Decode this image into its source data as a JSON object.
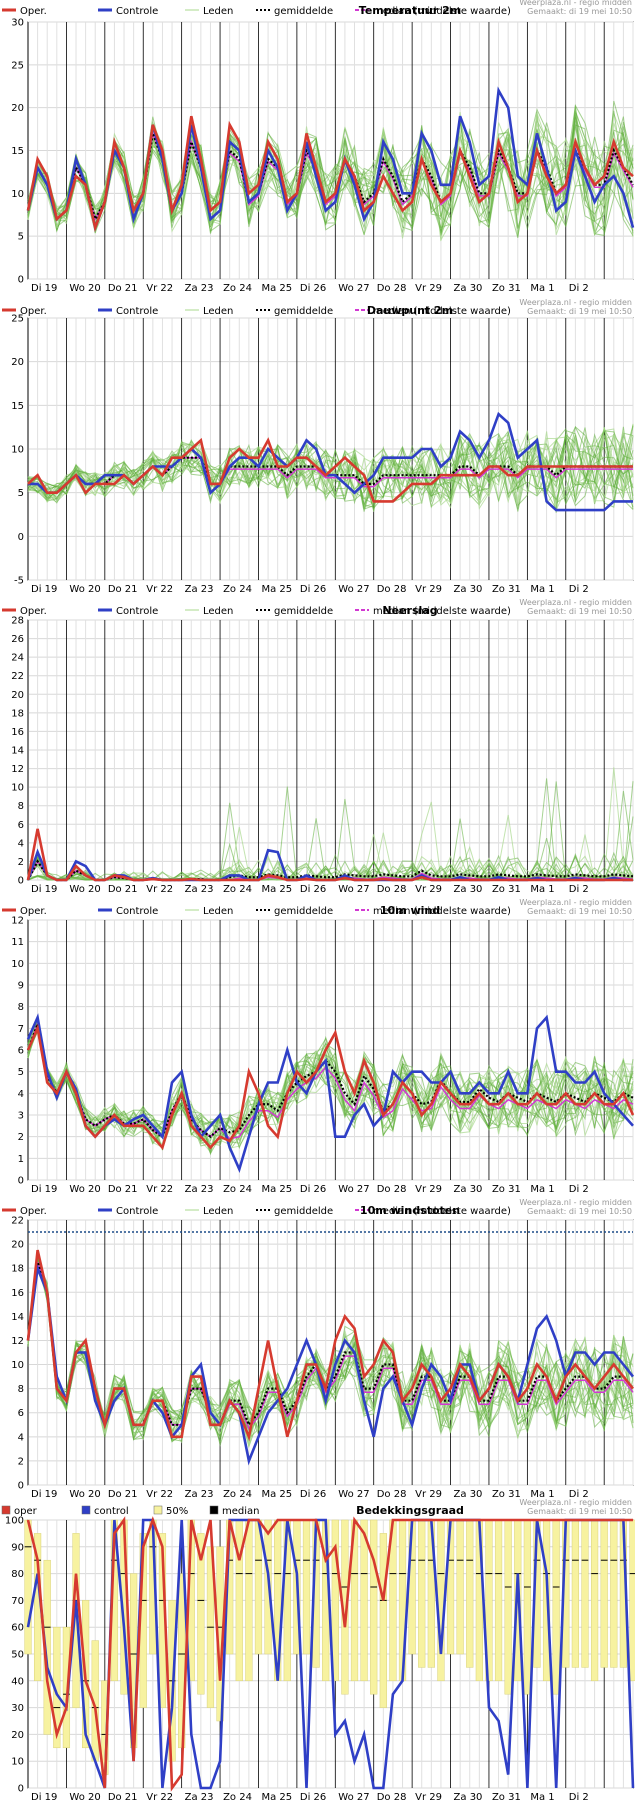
{
  "credit": {
    "line1": "Weerplaza.nl - regio midden",
    "line2": "Gemaakt: di 19 mei 10:50"
  },
  "legend_labels": {
    "oper": "Oper.",
    "control": "Controle",
    "members": "Leden",
    "mean": "gemiddelde",
    "median": "median (middelste waarde)"
  },
  "cloud_legend_labels": {
    "oper": "oper",
    "control": "control",
    "p50": "50%",
    "median": "median"
  },
  "colors": {
    "oper": "#d63a2f",
    "control": "#2f3fc6",
    "members": "#5fae3a",
    "members_light": "#a9d98e",
    "mean": "#000000",
    "median": "#d238d2",
    "band": "#f7f2a0"
  },
  "day_labels": [
    "Di 19",
    "Wo 20",
    "Do 21",
    "Vr 22",
    "Za 23",
    "Zo 24",
    "Ma 25",
    "Di 26",
    "Wo 27",
    "Do 28",
    "Vr 29",
    "Za 30",
    "Zo 31",
    "Ma 1",
    "Di 2"
  ],
  "chart_data": [
    {
      "type": "line",
      "title": "Temperatuur 2m",
      "ylim": [
        0,
        30
      ],
      "yticks": [
        0,
        5,
        10,
        15,
        20,
        25,
        30
      ],
      "x_unit": "6-hourly steps from Di 19 00:00",
      "oper": [
        8,
        14,
        12,
        7,
        8,
        12,
        11,
        6,
        9,
        16,
        13,
        8,
        10,
        18,
        15,
        8,
        11,
        19,
        14,
        8,
        9,
        18,
        16,
        10,
        11,
        16,
        14,
        9,
        10,
        17,
        13,
        9,
        10,
        14,
        12,
        8,
        9,
        12,
        10,
        8,
        9,
        14,
        11,
        9,
        10,
        15,
        12,
        9,
        10,
        16,
        13,
        9,
        10,
        15,
        12,
        10,
        11,
        16,
        13,
        11,
        12,
        16,
        13,
        12
      ],
      "control": [
        8,
        13,
        11,
        7,
        8,
        14,
        11,
        6,
        9,
        15,
        13,
        7,
        10,
        18,
        14,
        8,
        10,
        18,
        13,
        7,
        8,
        16,
        15,
        9,
        10,
        15,
        13,
        8,
        10,
        16,
        12,
        8,
        9,
        14,
        11,
        7,
        9,
        16,
        14,
        10,
        10,
        17,
        15,
        11,
        11,
        19,
        16,
        11,
        12,
        22,
        20,
        12,
        11,
        17,
        13,
        8,
        9,
        15,
        12,
        9,
        11,
        12,
        10,
        6
      ],
      "mean": [
        8,
        13,
        11,
        7,
        8,
        13,
        11,
        7,
        9,
        15,
        13,
        8,
        10,
        17,
        14,
        8,
        10,
        16,
        13,
        8,
        9,
        15,
        14,
        9,
        10,
        14,
        13,
        9,
        10,
        15,
        13,
        9,
        10,
        14,
        12,
        9,
        10,
        14,
        12,
        9,
        10,
        14,
        12,
        9,
        10,
        15,
        13,
        10,
        10,
        15,
        13,
        10,
        10,
        15,
        13,
        10,
        11,
        15,
        13,
        11,
        11,
        15,
        13,
        11
      ],
      "members_spread": 5
    },
    {
      "type": "line",
      "title": "Dauwpunt 2m",
      "ylim": [
        -5,
        25
      ],
      "yticks": [
        -5,
        0,
        5,
        10,
        15,
        20,
        25
      ],
      "x_unit": "6-hourly steps from Di 19 00:00",
      "oper": [
        6,
        7,
        5,
        5,
        6,
        7,
        5,
        6,
        6,
        6,
        7,
        6,
        7,
        8,
        7,
        9,
        9,
        10,
        11,
        6,
        6,
        9,
        10,
        9,
        9,
        11,
        8,
        8,
        9,
        9,
        8,
        7,
        8,
        9,
        8,
        7,
        4,
        4,
        4,
        5,
        6,
        6,
        6,
        7,
        7,
        7,
        7,
        7,
        8,
        8,
        7,
        7,
        8,
        8,
        8,
        8,
        8,
        8,
        8,
        8,
        8,
        8,
        8,
        8
      ],
      "control": [
        6,
        6,
        5,
        5,
        6,
        7,
        6,
        6,
        7,
        7,
        7,
        6,
        7,
        8,
        8,
        8,
        9,
        10,
        9,
        5,
        6,
        8,
        9,
        9,
        8,
        10,
        9,
        8,
        9,
        11,
        10,
        7,
        7,
        6,
        5,
        6,
        7,
        9,
        9,
        9,
        9,
        10,
        10,
        8,
        9,
        12,
        11,
        9,
        11,
        14,
        13,
        9,
        10,
        11,
        4,
        3,
        3,
        3,
        3,
        3,
        3,
        4,
        4,
        4
      ],
      "mean": [
        6,
        6,
        5,
        5,
        6,
        7,
        6,
        6,
        6,
        7,
        7,
        6,
        7,
        8,
        7,
        8,
        9,
        9,
        9,
        6,
        6,
        8,
        8,
        8,
        8,
        8,
        8,
        7,
        8,
        8,
        8,
        7,
        7,
        7,
        7,
        6,
        6,
        7,
        7,
        7,
        7,
        7,
        7,
        7,
        7,
        8,
        8,
        7,
        8,
        8,
        8,
        7,
        8,
        8,
        8,
        7,
        8,
        8,
        8,
        8,
        8,
        8,
        8,
        8
      ],
      "members_spread": 4
    },
    {
      "type": "line",
      "title": "Neerslag",
      "ylim": [
        0,
        28
      ],
      "yticks": [
        0,
        2,
        4,
        6,
        8,
        10,
        12,
        14,
        16,
        18,
        20,
        22,
        24,
        26,
        28
      ],
      "x_unit": "6-hourly steps from Di 19 00:00",
      "oper": [
        0,
        5.5,
        0.5,
        0,
        0,
        1.5,
        0.5,
        0,
        0,
        0.5,
        0.3,
        0,
        0,
        0.1,
        0,
        0,
        0,
        0.1,
        0,
        0,
        0,
        0,
        0,
        0,
        0,
        0.5,
        0.3,
        0,
        0,
        0.1,
        0,
        0,
        0,
        0.2,
        0,
        0,
        0,
        0.1,
        0,
        0,
        0,
        0.3,
        0,
        0,
        0,
        0,
        0,
        0,
        0,
        0,
        0,
        0,
        0,
        0,
        0,
        0,
        0,
        0,
        0,
        0,
        0,
        0,
        0,
        0
      ],
      "control": [
        0,
        3,
        0.5,
        0,
        0,
        2,
        1.5,
        0,
        0,
        0.5,
        0.5,
        0,
        0,
        0.2,
        0,
        0,
        0,
        0,
        0,
        0,
        0,
        0.5,
        0.5,
        0,
        0,
        3.2,
        3,
        0,
        0,
        0.5,
        0,
        0,
        0,
        0.5,
        0,
        0,
        0,
        0,
        0,
        0,
        0,
        0.5,
        0,
        0,
        0,
        0.3,
        0,
        0,
        0,
        0.3,
        0,
        0,
        0,
        0.2,
        0,
        0,
        0,
        0.2,
        0,
        0,
        0,
        0.2,
        0,
        0
      ],
      "mean": [
        0,
        2,
        0.5,
        0,
        0,
        1,
        0.5,
        0,
        0,
        0.3,
        0.2,
        0,
        0,
        0.1,
        0,
        0,
        0,
        0.1,
        0.1,
        0,
        0,
        0.3,
        0.5,
        0.3,
        0.3,
        0.6,
        0.5,
        0.3,
        0.3,
        0.5,
        0.4,
        0.3,
        0.3,
        0.6,
        0.5,
        0.4,
        0.4,
        0.6,
        0.5,
        0.4,
        0.4,
        1,
        0.5,
        0.4,
        0.4,
        0.6,
        0.5,
        0.4,
        0.4,
        0.6,
        0.5,
        0.4,
        0.4,
        0.6,
        0.5,
        0.4,
        0.4,
        0.6,
        0.5,
        0.4,
        0.4,
        0.6,
        0.5,
        0.4
      ],
      "members_spread": 2
    },
    {
      "type": "line",
      "title": "10m wind",
      "ylim": [
        0,
        12
      ],
      "yticks": [
        0,
        1,
        2,
        3,
        4,
        5,
        6,
        7,
        8,
        9,
        10,
        11,
        12
      ],
      "x_unit": "6-hourly steps from Di 19 00:00",
      "oper": [
        6,
        7,
        4.5,
        4,
        5,
        4,
        2.5,
        2,
        2.5,
        3,
        2.5,
        2.5,
        2.5,
        2,
        1.5,
        3,
        4,
        2.5,
        2,
        1.5,
        2,
        1.8,
        2.5,
        5,
        4,
        2.5,
        2,
        4,
        5,
        4.5,
        5,
        6,
        6.8,
        5,
        4,
        5.5,
        4.5,
        3,
        3.5,
        4.5,
        4,
        3,
        3.5,
        4.5,
        4,
        3.5,
        3.5,
        4,
        3.5,
        3.5,
        4,
        3.5,
        3.5,
        4,
        3.5,
        3.5,
        4,
        3.5,
        3.5,
        4,
        3.5,
        3.5,
        4,
        3
      ],
      "control": [
        6.5,
        7.5,
        5,
        3.8,
        5,
        4.2,
        2.5,
        2,
        2.5,
        2.8,
        2.5,
        2.8,
        3,
        2.5,
        2,
        4.5,
        5,
        3,
        2,
        2.5,
        3,
        1.5,
        0.5,
        2,
        3.5,
        4.5,
        4.5,
        6,
        4.5,
        4,
        5,
        5.5,
        2,
        2,
        3,
        3.5,
        2.5,
        3,
        5,
        4.5,
        5,
        5,
        4.5,
        4.5,
        5,
        4,
        4,
        4.5,
        4,
        4,
        5,
        4,
        4,
        7,
        7.5,
        5,
        5,
        4.5,
        4.5,
        5,
        4,
        3.5,
        3,
        2.5
      ],
      "mean": [
        6,
        7.2,
        4.8,
        4,
        5,
        4,
        2.8,
        2.5,
        2.8,
        3,
        2.6,
        2.6,
        2.8,
        2.3,
        2,
        3.2,
        4,
        2.8,
        2.3,
        2,
        2.4,
        2.2,
        2.3,
        3,
        3.5,
        3.5,
        3.2,
        4,
        4.5,
        4.8,
        5,
        5.5,
        5,
        4,
        3.5,
        4.8,
        4.2,
        3.2,
        3.5,
        4.5,
        4,
        3.5,
        3.6,
        4.6,
        4,
        3.6,
        3.6,
        4.2,
        3.8,
        3.6,
        4,
        3.8,
        3.6,
        4,
        3.8,
        3.6,
        4,
        3.8,
        3.6,
        4,
        3.8,
        3.6,
        4,
        3.8
      ],
      "members_spread": 1.5
    },
    {
      "type": "line",
      "title": "10m windstoten",
      "ylim": [
        0,
        22
      ],
      "yticks": [
        0,
        2,
        4,
        6,
        8,
        10,
        12,
        14,
        16,
        18,
        20,
        22
      ],
      "reference_line": 21,
      "x_unit": "6-hourly steps from Di 19 00:00",
      "oper": [
        12,
        19.5,
        16,
        8,
        7,
        11,
        12,
        8,
        5,
        8,
        8,
        5,
        5,
        7,
        7,
        4,
        4,
        9,
        9,
        5,
        5,
        7,
        6,
        4,
        8,
        12,
        8,
        4,
        7,
        10,
        10,
        8,
        12,
        14,
        13,
        9,
        10,
        12,
        11,
        7,
        8,
        10,
        9,
        7,
        8,
        10,
        9,
        7,
        8,
        10,
        9,
        7,
        8,
        10,
        9,
        7,
        9,
        10,
        9,
        8,
        9,
        10,
        9,
        8
      ],
      "control": [
        12,
        18,
        16,
        9,
        7,
        11,
        11,
        7,
        5,
        7,
        8,
        5,
        5,
        7,
        6,
        4,
        5,
        9,
        10,
        6,
        5,
        7,
        6,
        2,
        4,
        6,
        7,
        8,
        10,
        12,
        10,
        7,
        10,
        12,
        11,
        7,
        4,
        8,
        9,
        7,
        5,
        8,
        10,
        9,
        7,
        10,
        10,
        7,
        8,
        10,
        9,
        7,
        10,
        13,
        14,
        12,
        9,
        11,
        11,
        10,
        11,
        11,
        10,
        9
      ],
      "mean": [
        12,
        18.5,
        16,
        8,
        7,
        11,
        11,
        8,
        5,
        8,
        8,
        5,
        5,
        7,
        7,
        5,
        5,
        8,
        8,
        6,
        5,
        7,
        7,
        5,
        6,
        8,
        8,
        6,
        7,
        9,
        10,
        8,
        9,
        11,
        11,
        8,
        8,
        10,
        10,
        7,
        7,
        9,
        9,
        7,
        7,
        9,
        9,
        7,
        7,
        9,
        9,
        7,
        7,
        9,
        9,
        7,
        8,
        9,
        9,
        8,
        8,
        9,
        9,
        8
      ],
      "members_spread": 3
    },
    {
      "type": "line",
      "title": "Bedekkingsgraad",
      "ylim": [
        0,
        100
      ],
      "yticks": [
        0,
        10,
        20,
        30,
        40,
        50,
        60,
        70,
        80,
        90,
        100
      ],
      "x_unit": "6-hourly steps from Di 19 00:00",
      "oper": [
        100,
        85,
        40,
        20,
        30,
        80,
        40,
        30,
        0,
        95,
        100,
        10,
        90,
        100,
        90,
        0,
        5,
        100,
        85,
        100,
        40,
        100,
        85,
        100,
        100,
        95,
        100,
        100,
        100,
        100,
        100,
        85,
        90,
        60,
        100,
        95,
        85,
        70,
        100,
        100,
        100,
        100,
        100,
        100,
        100,
        100,
        100,
        100,
        100,
        100,
        100,
        100,
        100,
        100,
        100,
        100,
        100,
        100,
        100,
        100,
        100,
        100,
        100,
        100
      ],
      "control": [
        60,
        80,
        45,
        35,
        30,
        70,
        20,
        10,
        0,
        100,
        60,
        10,
        100,
        100,
        0,
        30,
        100,
        20,
        0,
        0,
        10,
        100,
        100,
        100,
        100,
        80,
        40,
        100,
        80,
        0,
        100,
        100,
        20,
        25,
        10,
        20,
        0,
        0,
        35,
        40,
        100,
        100,
        100,
        50,
        100,
        100,
        100,
        100,
        30,
        25,
        5,
        80,
        0,
        100,
        80,
        0,
        100,
        100,
        100,
        100,
        100,
        100,
        100,
        0
      ],
      "median": [
        90,
        85,
        60,
        30,
        35,
        70,
        40,
        30,
        20,
        85,
        80,
        50,
        70,
        90,
        70,
        40,
        50,
        80,
        70,
        60,
        60,
        85,
        80,
        80,
        85,
        85,
        80,
        80,
        85,
        85,
        85,
        80,
        80,
        75,
        80,
        80,
        75,
        70,
        80,
        80,
        85,
        85,
        85,
        80,
        85,
        85,
        85,
        80,
        80,
        80,
        75,
        80,
        75,
        85,
        80,
        75,
        85,
        85,
        85,
        80,
        85,
        85,
        85,
        80
      ],
      "band_low": [
        50,
        40,
        20,
        15,
        15,
        30,
        15,
        10,
        5,
        40,
        35,
        15,
        30,
        50,
        30,
        10,
        15,
        40,
        35,
        30,
        25,
        50,
        40,
        40,
        50,
        50,
        40,
        40,
        50,
        50,
        45,
        40,
        40,
        35,
        40,
        40,
        35,
        30,
        40,
        40,
        50,
        45,
        45,
        40,
        50,
        50,
        45,
        40,
        40,
        40,
        35,
        40,
        35,
        45,
        40,
        35,
        45,
        45,
        45,
        40,
        45,
        45,
        45,
        40
      ],
      "band_high": [
        100,
        95,
        85,
        60,
        60,
        95,
        70,
        55,
        40,
        100,
        100,
        80,
        95,
        100,
        95,
        70,
        80,
        100,
        95,
        90,
        90,
        100,
        100,
        100,
        100,
        100,
        100,
        100,
        100,
        100,
        100,
        100,
        100,
        100,
        100,
        100,
        100,
        95,
        100,
        100,
        100,
        100,
        100,
        100,
        100,
        100,
        100,
        100,
        100,
        100,
        100,
        100,
        100,
        100,
        100,
        100,
        100,
        100,
        100,
        100,
        100,
        100,
        100,
        100
      ]
    }
  ]
}
